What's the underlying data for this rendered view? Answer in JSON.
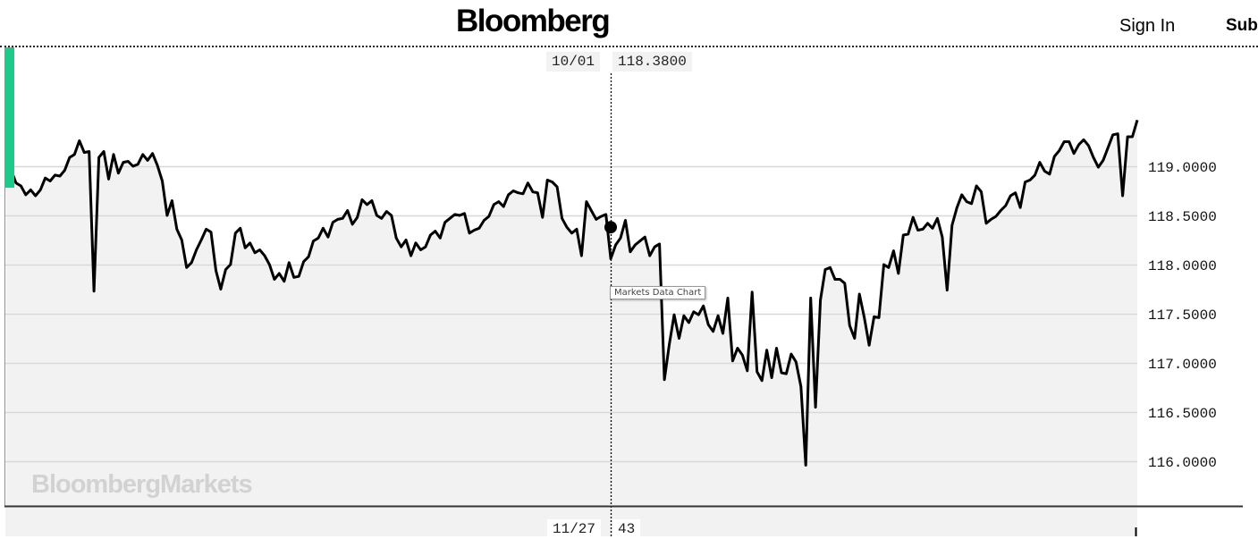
{
  "header": {
    "logo": "Bloomberg",
    "sign_in": "Sign In",
    "subscribe": "Sub"
  },
  "watermark": "BloombergMarkets",
  "tooltip": "Markets Data Chart",
  "crosshair": {
    "date": "10/01",
    "value_label": "118.3800",
    "value": 118.38,
    "volume_date": "11/27",
    "volume_value": "43"
  },
  "colors": {
    "accent": "#1fc98a",
    "line": "#000000",
    "plot_bg": "#f2f2f2",
    "grid": "#d8d8d8"
  },
  "chart_data": {
    "type": "line",
    "title": "",
    "xlabel": "",
    "ylabel": "",
    "ylim": [
      115.6,
      120.2
    ],
    "y_ticks": [
      "119.0000",
      "118.5000",
      "118.0000",
      "117.5000",
      "117.0000",
      "116.5000",
      "116.0000"
    ],
    "grid": true,
    "values": [
      118.89,
      118.96,
      118.83,
      118.8,
      118.71,
      118.76,
      118.7,
      118.76,
      118.88,
      118.85,
      118.91,
      118.9,
      118.96,
      119.09,
      119.12,
      119.26,
      119.14,
      119.15,
      117.73,
      119.09,
      119.15,
      118.87,
      119.12,
      118.93,
      119.04,
      119.05,
      119.0,
      119.02,
      119.12,
      119.06,
      119.13,
      119.01,
      118.85,
      118.5,
      118.65,
      118.36,
      118.25,
      117.97,
      118.02,
      118.15,
      118.25,
      118.36,
      118.33,
      117.94,
      117.75,
      117.95,
      118.0,
      118.32,
      118.37,
      118.17,
      118.22,
      118.12,
      118.15,
      118.09,
      118.0,
      117.85,
      117.91,
      117.83,
      118.02,
      117.87,
      117.88,
      118.03,
      118.08,
      118.24,
      118.27,
      118.37,
      118.28,
      118.43,
      118.46,
      118.47,
      118.55,
      118.41,
      118.48,
      118.66,
      118.61,
      118.65,
      118.5,
      118.47,
      118.54,
      118.5,
      118.27,
      118.18,
      118.25,
      118.09,
      118.22,
      118.15,
      118.18,
      118.3,
      118.34,
      118.27,
      118.43,
      118.47,
      118.51,
      118.5,
      118.52,
      118.32,
      118.35,
      118.37,
      118.45,
      118.49,
      118.61,
      118.64,
      118.59,
      118.71,
      118.75,
      118.73,
      118.72,
      118.83,
      118.74,
      118.73,
      118.48,
      118.86,
      118.84,
      118.79,
      118.47,
      118.38,
      118.32,
      118.36,
      118.09,
      118.64,
      118.55,
      118.46,
      118.49,
      118.51,
      118.06,
      118.2,
      118.27,
      118.45,
      118.13,
      118.2,
      118.24,
      118.28,
      118.09,
      118.18,
      118.21,
      116.83,
      117.19,
      117.49,
      117.25,
      117.48,
      117.41,
      117.52,
      117.49,
      117.58,
      117.39,
      117.32,
      117.48,
      117.3,
      117.66,
      117.02,
      117.15,
      117.08,
      116.92,
      117.72,
      116.91,
      116.82,
      117.13,
      116.85,
      117.15,
      116.9,
      116.89,
      117.09,
      117.01,
      116.76,
      115.96,
      117.66,
      116.55,
      117.64,
      117.95,
      117.97,
      117.85,
      117.85,
      117.81,
      117.38,
      117.25,
      117.7,
      117.46,
      117.18,
      117.47,
      117.46,
      118.0,
      117.97,
      118.14,
      117.91,
      118.3,
      118.31,
      118.48,
      118.35,
      118.36,
      118.42,
      118.37,
      118.47,
      118.28,
      117.74,
      118.4,
      118.58,
      118.71,
      118.64,
      118.62,
      118.8,
      118.74,
      118.42,
      118.46,
      118.49,
      118.55,
      118.6,
      118.7,
      118.73,
      118.58,
      118.84,
      118.86,
      118.91,
      119.04,
      118.95,
      118.92,
      119.1,
      119.16,
      119.25,
      119.25,
      119.13,
      119.22,
      119.27,
      119.21,
      119.09,
      118.99,
      119.06,
      119.19,
      119.32,
      119.33,
      118.7,
      119.3,
      119.3,
      119.47
    ]
  }
}
